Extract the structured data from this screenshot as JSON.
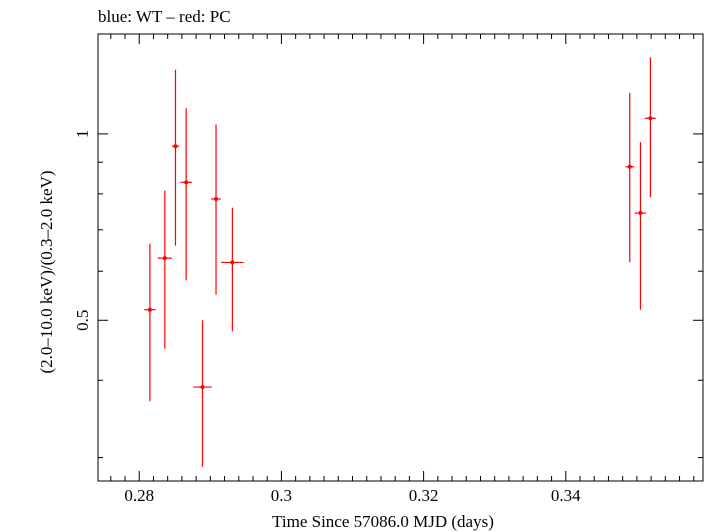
{
  "chart_data": {
    "type": "scatter",
    "title": "blue: WT – red: PC",
    "xlabel": "Time Since 57086.0 MJD (days)",
    "ylabel": "(2.0–10.0 keV)/(0.3–2.0 keV)",
    "x_ticks": [
      0.28,
      0.3,
      0.32,
      0.34
    ],
    "x_tick_labels": [
      "0.28",
      "0.3",
      "0.32",
      "0.34"
    ],
    "y_ticks": [
      0.5,
      1
    ],
    "y_tick_labels": [
      "0.5",
      "1"
    ],
    "xlim": [
      0.2742,
      0.3593
    ],
    "ylim": [
      0.275,
      1.45
    ],
    "y_scale": "log",
    "grid": false,
    "series": [
      {
        "name": "PC",
        "color": "#ff0000",
        "points": [
          {
            "x": 0.2815,
            "y": 0.52,
            "xerr": 0.0008,
            "ylo": 0.37,
            "yhi": 0.665
          },
          {
            "x": 0.2836,
            "y": 0.63,
            "xerr": 0.001,
            "ylo": 0.45,
            "yhi": 0.81
          },
          {
            "x": 0.2851,
            "y": 0.955,
            "xerr": 0.0005,
            "ylo": 0.66,
            "yhi": 1.27
          },
          {
            "x": 0.2866,
            "y": 0.835,
            "xerr": 0.0008,
            "ylo": 0.58,
            "yhi": 1.1
          },
          {
            "x": 0.2889,
            "y": 0.39,
            "xerr": 0.0013,
            "ylo": 0.29,
            "yhi": 0.5
          },
          {
            "x": 0.2908,
            "y": 0.785,
            "xerr": 0.0007,
            "ylo": 0.55,
            "yhi": 1.035
          },
          {
            "x": 0.2931,
            "y": 0.62,
            "xerr": 0.0016,
            "ylo": 0.48,
            "yhi": 0.76
          },
          {
            "x": 0.349,
            "y": 0.885,
            "xerr": 0.0006,
            "ylo": 0.62,
            "yhi": 1.165
          },
          {
            "x": 0.3505,
            "y": 0.745,
            "xerr": 0.0008,
            "ylo": 0.52,
            "yhi": 0.97
          },
          {
            "x": 0.3519,
            "y": 1.06,
            "xerr": 0.0008,
            "ylo": 0.79,
            "yhi": 1.33
          }
        ]
      }
    ]
  }
}
